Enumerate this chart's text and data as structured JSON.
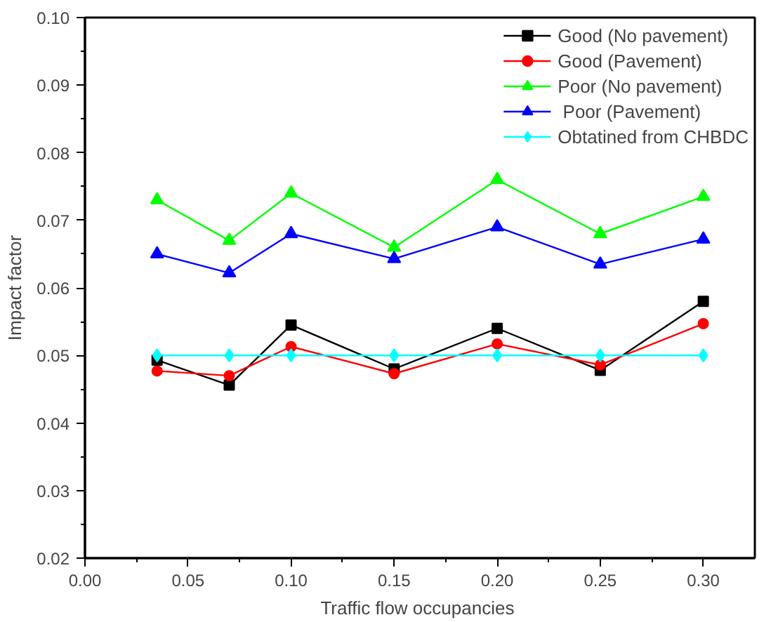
{
  "chart_data": {
    "type": "line",
    "xlabel": "Traffic  flow occupancies",
    "ylabel": "Impact factor",
    "x": [
      0.035,
      0.07,
      0.1,
      0.15,
      0.2,
      0.25,
      0.3
    ],
    "series": [
      {
        "name": "Good (No pavement)",
        "color": "#000000",
        "marker": "square",
        "values": [
          0.0493,
          0.0456,
          0.0545,
          0.048,
          0.054,
          0.0478,
          0.058
        ]
      },
      {
        "name": "Good (Pavement)",
        "color": "#ff0000",
        "marker": "circle",
        "values": [
          0.0477,
          0.047,
          0.0513,
          0.0473,
          0.0517,
          0.0486,
          0.0547
        ]
      },
      {
        "name": "Poor (No pavement)",
        "color": "#00ff00",
        "marker": "triangle",
        "values": [
          0.073,
          0.067,
          0.074,
          0.066,
          0.076,
          0.068,
          0.0735
        ]
      },
      {
        "name": " Poor (Pavement)",
        "color": "#0000ff",
        "marker": "triangle",
        "values": [
          0.065,
          0.0622,
          0.068,
          0.0643,
          0.069,
          0.0635,
          0.0672
        ]
      },
      {
        "name": "Obtatined from CHBDC",
        "color": "#00ffff",
        "marker": "diamond",
        "values": [
          0.05,
          0.05,
          0.05,
          0.05,
          0.05,
          0.05,
          0.05
        ]
      }
    ],
    "xlim": [
      0.0,
      0.325
    ],
    "xticks": [
      {
        "value": 0,
        "label": "0.00"
      },
      0.05,
      {
        "value": 0.1,
        "label": "0.10"
      },
      0.15,
      {
        "value": 0.2,
        "label": "0.20"
      },
      0.25,
      {
        "value": 0.3,
        "label": "0.30"
      }
    ],
    "ylim": [
      0.02,
      0.1
    ],
    "yticks": [
      0.02,
      0.03,
      0.04,
      0.05,
      0.06,
      0.07,
      0.08,
      0.09,
      {
        "value": 0.1,
        "label": "0.10"
      }
    ],
    "grid": false,
    "legend": "top right",
    "line_style": "solid"
  }
}
